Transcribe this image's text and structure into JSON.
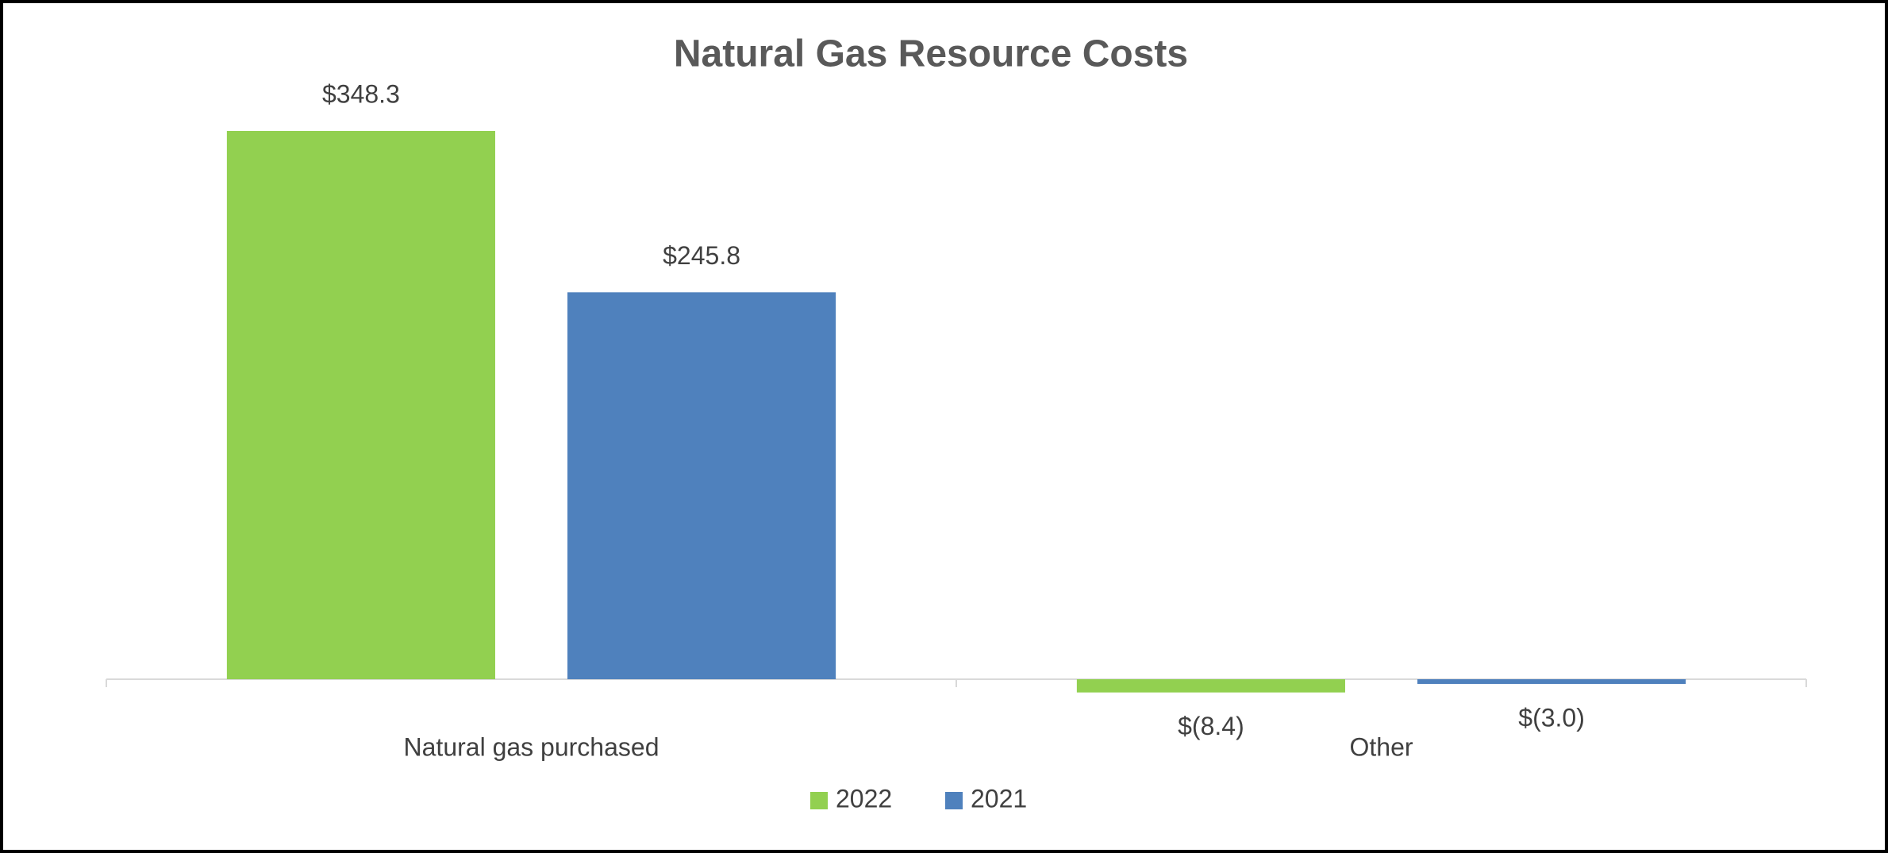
{
  "chart_data": {
    "type": "bar",
    "title": "Natural Gas Resource Costs",
    "categories": [
      "Natural gas purchased",
      "Other"
    ],
    "series": [
      {
        "name": "2022",
        "color": "#92d050",
        "values": [
          348.3,
          -8.4
        ],
        "value_labels": [
          "$348.3",
          "$(8.4)"
        ]
      },
      {
        "name": "2021",
        "color": "#4f81bd",
        "values": [
          245.8,
          -3.0
        ],
        "value_labels": [
          "$245.8",
          "$(3.0)"
        ]
      }
    ],
    "legend": "bottom",
    "grid": false
  }
}
